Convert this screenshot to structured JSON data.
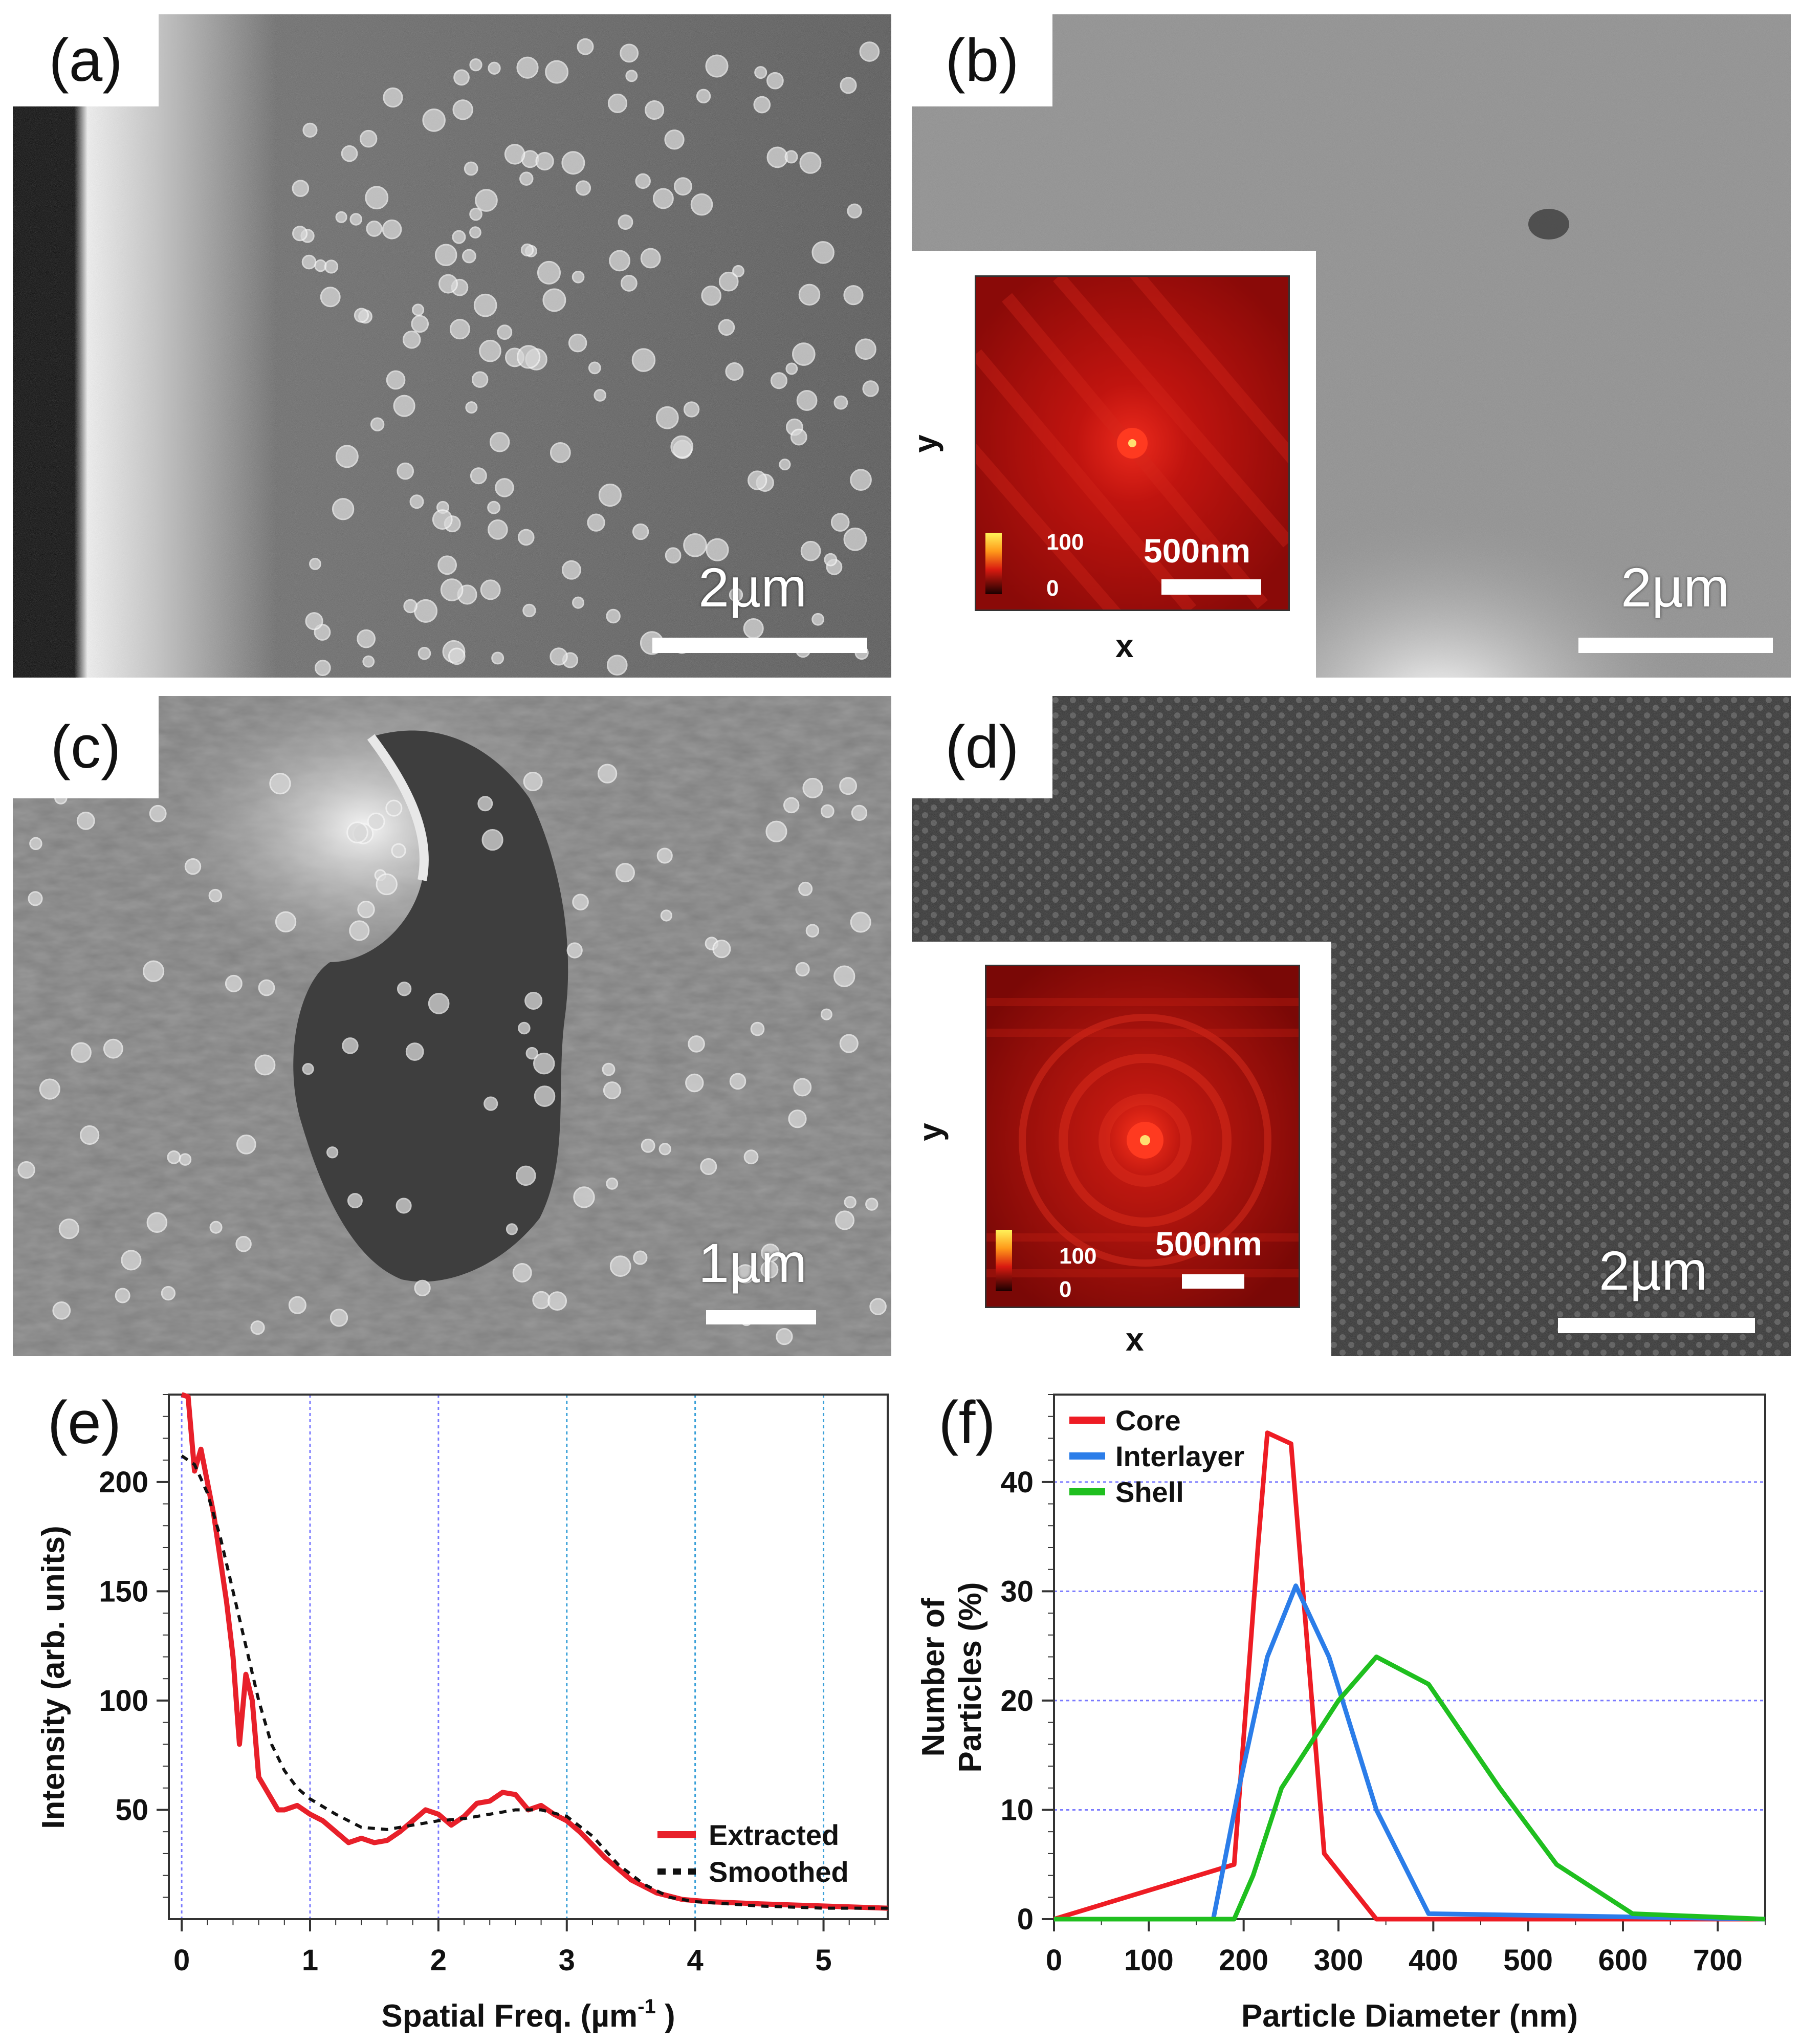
{
  "panels": {
    "a": {
      "label": "(a)",
      "scale": "2µm"
    },
    "b": {
      "label": "(b)",
      "scale": "2µm",
      "inset": {
        "x_axis": "x",
        "y_axis": "y",
        "colorbar_max": "100",
        "colorbar_min": "0",
        "scale": "500nm"
      }
    },
    "c": {
      "label": "(c)",
      "scale": "1µm"
    },
    "d": {
      "label": "(d)",
      "scale": "2µm",
      "inset": {
        "x_axis": "x",
        "y_axis": "y",
        "colorbar_max": "100",
        "colorbar_min": "0",
        "scale": "500nm"
      }
    },
    "e": {
      "label": "(e)"
    },
    "f": {
      "label": "(f)"
    }
  },
  "colors": {
    "extracted": "#e8202a",
    "smoothed": "#111111",
    "core": "#ee1c24",
    "interlayer": "#2b7de9",
    "shell": "#1fbf1f"
  },
  "chart_data": [
    {
      "type": "line",
      "panel": "e",
      "xlabel": "Spatial Freq. (µm",
      "xlabel_sup": "-1",
      "xlabel_tail": " )",
      "ylabel": "Intensity (arb. units)",
      "xlim": [
        -0.1,
        5.5
      ],
      "ylim": [
        0,
        240
      ],
      "xticks": [
        0,
        1,
        2,
        3,
        4,
        5
      ],
      "yticks": [
        50,
        100,
        150,
        200
      ],
      "grid": "vertical dotted at integer x",
      "legend": "bottom-right",
      "series": [
        {
          "name": "Extracted",
          "style": "solid",
          "x": [
            0.0,
            0.05,
            0.1,
            0.15,
            0.2,
            0.25,
            0.3,
            0.35,
            0.4,
            0.45,
            0.5,
            0.55,
            0.6,
            0.65,
            0.7,
            0.75,
            0.8,
            0.9,
            1.0,
            1.1,
            1.2,
            1.3,
            1.4,
            1.5,
            1.6,
            1.7,
            1.8,
            1.9,
            2.0,
            2.1,
            2.2,
            2.3,
            2.4,
            2.5,
            2.6,
            2.7,
            2.8,
            2.9,
            3.0,
            3.1,
            3.3,
            3.5,
            3.7,
            3.9,
            4.1,
            4.5,
            5.0,
            5.5
          ],
          "y": [
            240,
            239,
            205,
            215,
            200,
            185,
            165,
            145,
            120,
            80,
            112,
            100,
            65,
            60,
            55,
            50,
            50,
            52,
            48,
            45,
            40,
            35,
            37,
            35,
            36,
            40,
            45,
            50,
            48,
            43,
            47,
            53,
            54,
            58,
            57,
            50,
            52,
            48,
            45,
            40,
            28,
            18,
            12,
            9,
            8,
            7,
            6,
            5
          ]
        },
        {
          "name": "Smoothed",
          "style": "dashed",
          "x": [
            0.0,
            0.1,
            0.2,
            0.3,
            0.4,
            0.5,
            0.6,
            0.7,
            0.8,
            0.9,
            1.0,
            1.2,
            1.4,
            1.6,
            1.8,
            2.0,
            2.2,
            2.4,
            2.6,
            2.8,
            3.0,
            3.2,
            3.4,
            3.6,
            3.8,
            4.0,
            4.5,
            5.0,
            5.5
          ],
          "y": [
            212,
            208,
            195,
            175,
            150,
            125,
            100,
            80,
            68,
            60,
            55,
            48,
            42,
            41,
            43,
            45,
            46,
            48,
            50,
            50,
            47,
            38,
            25,
            16,
            10,
            8,
            6,
            5,
            5
          ]
        }
      ]
    },
    {
      "type": "line",
      "panel": "f",
      "xlabel": "Particle Diameter (nm)",
      "ylabel": "Number of Particles (%)",
      "ylabel_lines": [
        "Number of",
        "Particles (%)"
      ],
      "xlim": [
        0,
        750
      ],
      "ylim": [
        0,
        48
      ],
      "xticks": [
        0,
        100,
        200,
        300,
        400,
        500,
        600,
        700
      ],
      "yticks": [
        0,
        10,
        20,
        30,
        40
      ],
      "grid": "horizontal dotted",
      "legend": "top-left",
      "series": [
        {
          "name": "Core",
          "x": [
            0,
            190,
            215,
            225,
            250,
            285,
            340,
            750
          ],
          "y": [
            0,
            5,
            34,
            44.5,
            43.5,
            6,
            0,
            0
          ]
        },
        {
          "name": "Interlayer",
          "x": [
            0,
            168,
            195,
            225,
            255,
            290,
            340,
            395,
            750
          ],
          "y": [
            0,
            0,
            12,
            24,
            30.5,
            24,
            10,
            0.5,
            0
          ]
        },
        {
          "name": "Shell",
          "x": [
            0,
            190,
            210,
            240,
            300,
            340,
            395,
            470,
            530,
            610,
            750
          ],
          "y": [
            0,
            0,
            4,
            12,
            20,
            24,
            21.5,
            12,
            5,
            0.5,
            0
          ]
        }
      ]
    }
  ]
}
